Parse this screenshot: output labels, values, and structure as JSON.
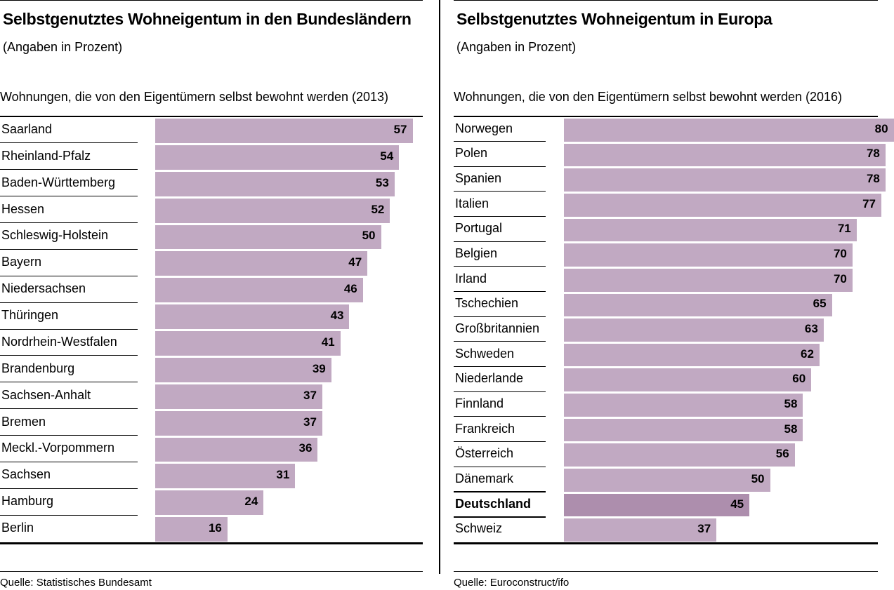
{
  "chart_data": [
    {
      "type": "bar",
      "title": "Selbstgenutztes Wohneigentum in den Bundesländern",
      "subtitle": "(Angaben in Prozent)",
      "caption": "Wohnungen, die von den Eigentümern selbst bewohnt werden (2013)",
      "source": "Quelle: Statistisches Bundesamt",
      "categories": [
        "Saarland",
        "Rheinland-Pfalz",
        "Baden-Württemberg",
        "Hessen",
        "Schleswig-Holstein",
        "Bayern",
        "Niedersachsen",
        "Thüringen",
        "Nordrhein-Westfalen",
        "Brandenburg",
        "Sachsen-Anhalt",
        "Bremen",
        "Meckl.-Vorpommern",
        "Sachsen",
        "Hamburg",
        "Berlin"
      ],
      "values": [
        57,
        54,
        53,
        52,
        50,
        47,
        46,
        43,
        41,
        39,
        37,
        37,
        36,
        31,
        24,
        16
      ],
      "highlight": "",
      "orientation": "horizontal",
      "grid": false,
      "bar_color": "#c1a9c2"
    },
    {
      "type": "bar",
      "title": "Selbstgenutztes Wohneigentum in Europa",
      "subtitle": "(Angaben in Prozent)",
      "caption": "Wohnungen, die von den Eigentümern selbst bewohnt werden (2016)",
      "source": "Quelle: Euroconstruct/ifo",
      "categories": [
        "Norwegen",
        "Polen",
        "Spanien",
        "Italien",
        "Portugal",
        "Belgien",
        "Irland",
        "Tschechien",
        "Großbritannien",
        "Schweden",
        "Niederlande",
        "Finnland",
        "Frankreich",
        "Österreich",
        "Dänemark",
        "Deutschland",
        "Schweiz"
      ],
      "values": [
        80,
        78,
        78,
        77,
        71,
        70,
        70,
        65,
        63,
        62,
        60,
        58,
        58,
        56,
        50,
        45,
        37
      ],
      "highlight": "Deutschland",
      "orientation": "horizontal",
      "grid": false,
      "bar_color": "#c1a9c2",
      "highlight_color": "#ad8ead"
    }
  ]
}
